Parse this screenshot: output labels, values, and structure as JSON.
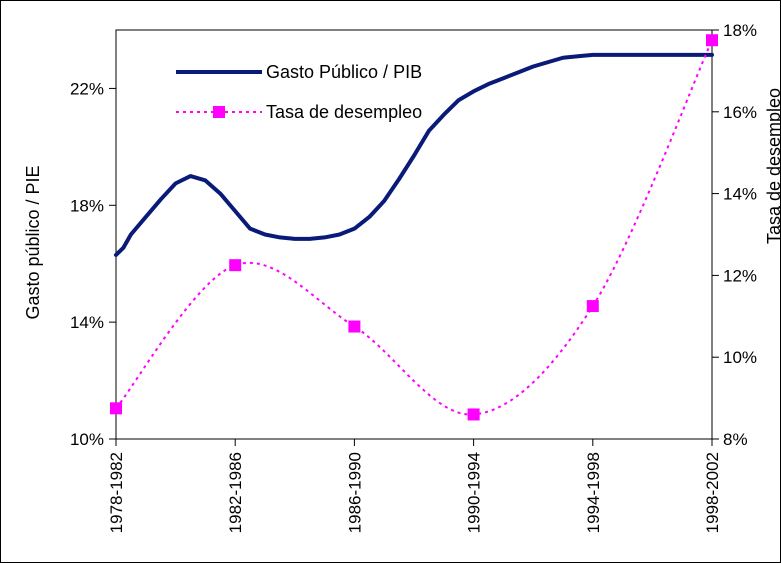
{
  "chart_data": {
    "type": "line",
    "categories": [
      "1978-1982",
      "1982-1986",
      "1986-1990",
      "1990-1994",
      "1994-1998",
      "1998-2002"
    ],
    "ylabel": "Gasto público / PIE",
    "y2label": "Tasa de desempleo",
    "ylim": [
      10,
      24
    ],
    "y2lim": [
      8,
      18
    ],
    "yticks": [
      10,
      14,
      18,
      22
    ],
    "y2ticks": [
      8,
      10,
      12,
      14,
      16,
      18
    ],
    "ytick_labels": [
      "10%",
      "14%",
      "18%",
      "22%"
    ],
    "y2tick_labels": [
      "8%",
      "10%",
      "12%",
      "14%",
      "16%",
      "18%"
    ],
    "legend_position": "top-left",
    "series": [
      {
        "name": "Gasto Público / PIB",
        "axis": "left",
        "color": "#0a1a78",
        "style": "solid",
        "x": [
          0,
          0.25,
          0.5,
          1,
          1.5,
          2,
          2.5,
          3,
          3.5,
          4,
          4.5,
          5,
          5.5,
          6,
          6.5,
          7,
          7.5,
          8,
          8.5,
          9,
          9.5,
          10,
          10.5,
          11,
          11.5,
          12,
          12.5,
          13,
          13.5,
          14,
          14.5,
          15,
          15.5,
          16,
          16.5,
          17,
          17.5,
          18,
          18.5,
          19,
          19.5,
          20
        ],
        "values": [
          16.3,
          16.55,
          17.0,
          17.6,
          18.2,
          18.75,
          19.0,
          18.85,
          18.4,
          17.8,
          17.2,
          17.0,
          16.9,
          16.85,
          16.85,
          16.9,
          17.0,
          17.2,
          17.6,
          18.15,
          18.9,
          19.7,
          20.55,
          21.1,
          21.6,
          21.9,
          22.15,
          22.35,
          22.55,
          22.75,
          22.9,
          23.05,
          23.1,
          23.15,
          23.15,
          23.15,
          23.15,
          23.15,
          23.15,
          23.15,
          23.15,
          23.15
        ],
        "x_unit": "fraction of 4-year spans"
      },
      {
        "name": "Tasa de desempleo",
        "axis": "right",
        "color": "#ff00ff",
        "style": "dotted",
        "marker": "square",
        "x": [
          0,
          1,
          2,
          3,
          4,
          5
        ],
        "values": [
          8.75,
          12.25,
          10.75,
          8.6,
          11.25,
          17.75
        ]
      }
    ]
  }
}
